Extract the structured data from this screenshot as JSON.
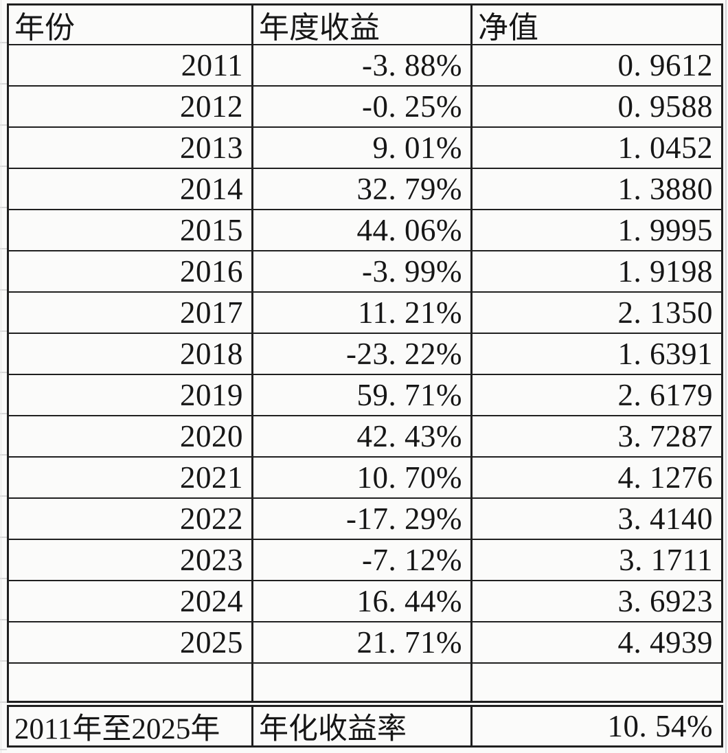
{
  "style": {
    "background": "#fafaf9",
    "cell_background": "#fbfbfa",
    "border_color": "#1f1f1f",
    "gridline_color": "#d8d8d8",
    "text_color": "#161616"
  },
  "chart_data": {
    "type": "table",
    "title": "",
    "columns": [
      "年份",
      "年度收益",
      "净值"
    ],
    "rows": [
      [
        "2011",
        "-3. 88%",
        "0. 9612"
      ],
      [
        "2012",
        "-0. 25%",
        "0. 9588"
      ],
      [
        "2013",
        "9. 01%",
        "1. 0452"
      ],
      [
        "2014",
        "32. 79%",
        "1. 3880"
      ],
      [
        "2015",
        "44. 06%",
        "1. 9995"
      ],
      [
        "2016",
        "-3. 99%",
        "1. 9198"
      ],
      [
        "2017",
        "11. 21%",
        "2. 1350"
      ],
      [
        "2018",
        "-23. 22%",
        "1. 6391"
      ],
      [
        "2019",
        "59. 71%",
        "2. 6179"
      ],
      [
        "2020",
        "42. 43%",
        "3. 7287"
      ],
      [
        "2021",
        "10. 70%",
        "4. 1276"
      ],
      [
        "2022",
        "-17. 29%",
        "3. 4140"
      ],
      [
        "2023",
        "-7. 12%",
        "3. 1711"
      ],
      [
        "2024",
        "16. 44%",
        "3. 6923"
      ],
      [
        "2025",
        "21. 71%",
        "4. 4939"
      ]
    ],
    "empty_row": [
      "",
      "",
      ""
    ],
    "summary_row": [
      "2011年至2025年",
      "年化收益率",
      "10. 54%"
    ]
  }
}
